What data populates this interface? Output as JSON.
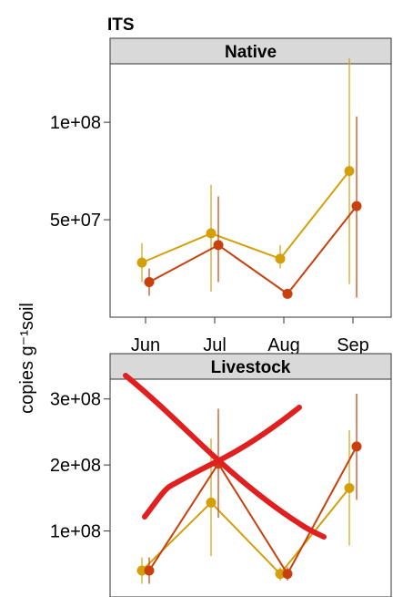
{
  "chart_data": {
    "type": "line",
    "title": "ITS",
    "ylabel": "copies g⁻¹soil",
    "series_colors": [
      "#d4a00a",
      "#c8400c"
    ],
    "annotation_color": "#e02020",
    "panels": [
      {
        "strip": "Native",
        "categories": [
          "Jun",
          "Jul",
          "Aug",
          "Sep"
        ],
        "ylim": [
          0,
          130000000
        ],
        "yticks": [
          50000000,
          100000000
        ],
        "ytick_labels": [
          "5e+07",
          "1e+08"
        ],
        "series": [
          {
            "values": [
              28000000,
              43000000,
              30000000,
              75000000
            ],
            "err_low": [
              18000000,
              13000000,
              25000000,
              17000000
            ],
            "err_high": [
              38000000,
              68000000,
              37000000,
              133000000
            ]
          },
          {
            "values": [
              18000000,
              37000000,
              12000000,
              57000000
            ],
            "err_low": [
              11000000,
              18000000,
              10000000,
              10000000
            ],
            "err_high": [
              25000000,
              62000000,
              14000000,
              103000000
            ]
          }
        ]
      },
      {
        "strip": "Livestock",
        "categories": [
          "Jun",
          "Jul",
          "Aug",
          "Sep"
        ],
        "ylim": [
          0,
          330000000
        ],
        "yticks": [
          100000000,
          200000000,
          300000000
        ],
        "ytick_labels": [
          "1e+08",
          "2e+08",
          "3e+08"
        ],
        "series": [
          {
            "values": [
              40000000,
              143000000,
              35000000,
              165000000
            ],
            "err_low": [
              20000000,
              62000000,
              25000000,
              78000000
            ],
            "err_high": [
              60000000,
              240000000,
              45000000,
              253000000
            ]
          },
          {
            "values": [
              40000000,
              202000000,
              35000000,
              228000000
            ],
            "err_low": [
              20000000,
              120000000,
              25000000,
              147000000
            ],
            "err_high": [
              60000000,
              285000000,
              45000000,
              308000000
            ]
          }
        ]
      }
    ]
  }
}
